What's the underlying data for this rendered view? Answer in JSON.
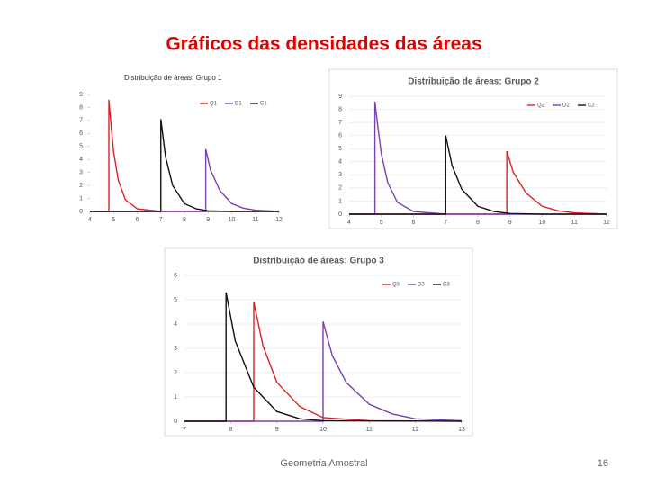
{
  "slide": {
    "title": "Gráficos das densidades das áreas",
    "footer": "Geometria Amostral",
    "page": "16"
  },
  "chart_data": [
    {
      "type": "line",
      "title": "Distribuição de áreas: Grupo 1",
      "xlim": [
        4,
        12
      ],
      "xticks": [
        4,
        5,
        6,
        7,
        8,
        9,
        10,
        11,
        12
      ],
      "ylim": [
        0,
        9
      ],
      "yticks": [
        0,
        1,
        2,
        3,
        4,
        5,
        6,
        7,
        8,
        9
      ],
      "grid": false,
      "legend": "upper right",
      "series": [
        {
          "name": "Q1",
          "color": "#e02020",
          "x": [
            4,
            4.8,
            4.8,
            4.9,
            5.0,
            5.2,
            5.5,
            6,
            7,
            12
          ],
          "values": [
            0,
            0,
            8.6,
            6.5,
            4.6,
            2.4,
            0.9,
            0.2,
            0,
            0
          ]
        },
        {
          "name": "D1",
          "color": "#7a3fb0",
          "x": [
            4,
            8.9,
            8.9,
            9.1,
            9.5,
            10,
            10.5,
            11,
            12
          ],
          "values": [
            0,
            0,
            4.8,
            3.2,
            1.6,
            0.6,
            0.25,
            0.1,
            0
          ]
        },
        {
          "name": "C1",
          "color": "#111111",
          "x": [
            4,
            7,
            7,
            7.2,
            7.5,
            8,
            8.5,
            9,
            10,
            12
          ],
          "values": [
            0,
            0,
            7.1,
            4.2,
            2.0,
            0.6,
            0.2,
            0.05,
            0,
            0
          ]
        }
      ]
    },
    {
      "type": "line",
      "title": "Distribuição de áreas: Grupo 2",
      "xlim": [
        4,
        12
      ],
      "xticks": [
        4,
        5,
        6,
        7,
        8,
        9,
        10,
        11,
        12
      ],
      "ylim": [
        0,
        9
      ],
      "yticks": [
        0,
        1,
        2,
        3,
        4,
        5,
        6,
        7,
        8,
        9
      ],
      "grid": true,
      "legend": "upper right",
      "series": [
        {
          "name": "Q2",
          "color": "#e02020",
          "x": [
            4,
            8.9,
            8.9,
            9.1,
            9.5,
            10,
            10.5,
            11,
            12
          ],
          "values": [
            0,
            0,
            4.8,
            3.2,
            1.6,
            0.6,
            0.25,
            0.1,
            0
          ]
        },
        {
          "name": "D2",
          "color": "#7a3fb0",
          "x": [
            4,
            4.8,
            4.8,
            4.9,
            5.0,
            5.2,
            5.5,
            6,
            7,
            12
          ],
          "values": [
            0,
            0,
            8.6,
            6.5,
            4.6,
            2.4,
            0.9,
            0.2,
            0,
            0
          ]
        },
        {
          "name": "C2",
          "color": "#111111",
          "x": [
            4,
            7,
            7,
            7.2,
            7.5,
            8,
            8.5,
            9,
            10,
            12
          ],
          "values": [
            0,
            0,
            6,
            3.7,
            1.9,
            0.6,
            0.2,
            0.05,
            0,
            0
          ]
        }
      ]
    },
    {
      "type": "line",
      "title": "Distribuição de áreas: Grupo 3",
      "xlim": [
        7,
        13
      ],
      "xticks": [
        7,
        8,
        9,
        10,
        11,
        12,
        13
      ],
      "ylim": [
        0,
        6
      ],
      "yticks": [
        0,
        1,
        2,
        3,
        4,
        5,
        6
      ],
      "grid": true,
      "legend": "upper right",
      "series": [
        {
          "name": "Q3",
          "color": "#e02020",
          "x": [
            7,
            8.5,
            8.5,
            8.7,
            9,
            9.5,
            10,
            11,
            13
          ],
          "values": [
            0,
            0,
            4.9,
            3.1,
            1.6,
            0.6,
            0.15,
            0.02,
            0
          ]
        },
        {
          "name": "D3",
          "color": "#7a3fb0",
          "x": [
            7,
            10,
            10,
            10.2,
            10.5,
            11,
            11.5,
            12,
            13
          ],
          "values": [
            0,
            0,
            4.1,
            2.7,
            1.6,
            0.7,
            0.3,
            0.1,
            0.02
          ]
        },
        {
          "name": "C3",
          "color": "#111111",
          "x": [
            7,
            7.9,
            7.9,
            8.1,
            8.5,
            9,
            9.5,
            10,
            13
          ],
          "values": [
            0,
            0,
            5.3,
            3.3,
            1.4,
            0.4,
            0.1,
            0.02,
            0
          ]
        }
      ]
    }
  ]
}
